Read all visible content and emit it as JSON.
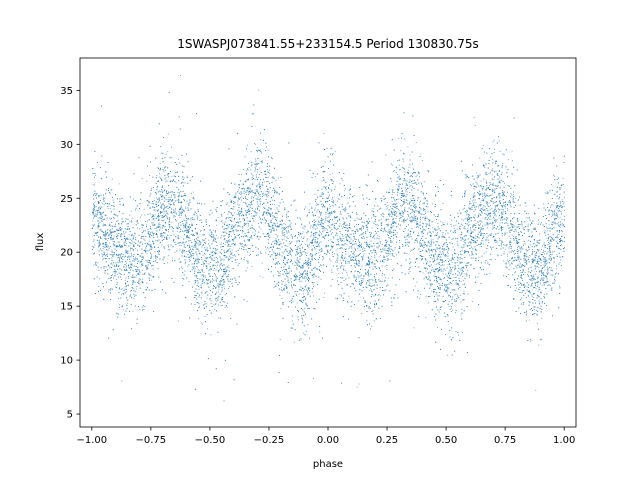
{
  "chart_data": {
    "type": "scatter",
    "title": "1SWASPJ073841.55+233154.5 Period 130830.75s",
    "xlabel": "phase",
    "ylabel": "flux",
    "xlim": [
      -1.05,
      1.05
    ],
    "ylim": [
      3.8,
      38.0
    ],
    "xticks": [
      -1.0,
      -0.75,
      -0.5,
      -0.25,
      0.0,
      0.25,
      0.5,
      0.75,
      1.0
    ],
    "xtick_labels": [
      "−1.00",
      "−0.75",
      "−0.50",
      "−0.25",
      "0.00",
      "0.25",
      "0.50",
      "0.75",
      "1.00"
    ],
    "yticks": [
      5,
      10,
      15,
      20,
      25,
      30,
      35
    ],
    "ytick_labels": [
      "5",
      "10",
      "15",
      "20",
      "25",
      "30",
      "35"
    ],
    "grid": false,
    "marker_color": "#1f77b4",
    "profile_phase": [
      0.0,
      0.05,
      0.1,
      0.15,
      0.2,
      0.25,
      0.3,
      0.35,
      0.4,
      0.45,
      0.5,
      0.55,
      0.6,
      0.65,
      0.7,
      0.75,
      0.8,
      0.85,
      0.9,
      0.95,
      1.0
    ],
    "profile_flux": [
      23.5,
      21.5,
      20.5,
      19.5,
      19.0,
      21.5,
      24.5,
      24.0,
      22.0,
      19.5,
      18.5,
      18.5,
      22.0,
      23.5,
      25.0,
      23.5,
      20.5,
      18.5,
      18.0,
      21.5,
      23.5
    ],
    "scatter_spread": 2.6,
    "n_points": 12000
  }
}
